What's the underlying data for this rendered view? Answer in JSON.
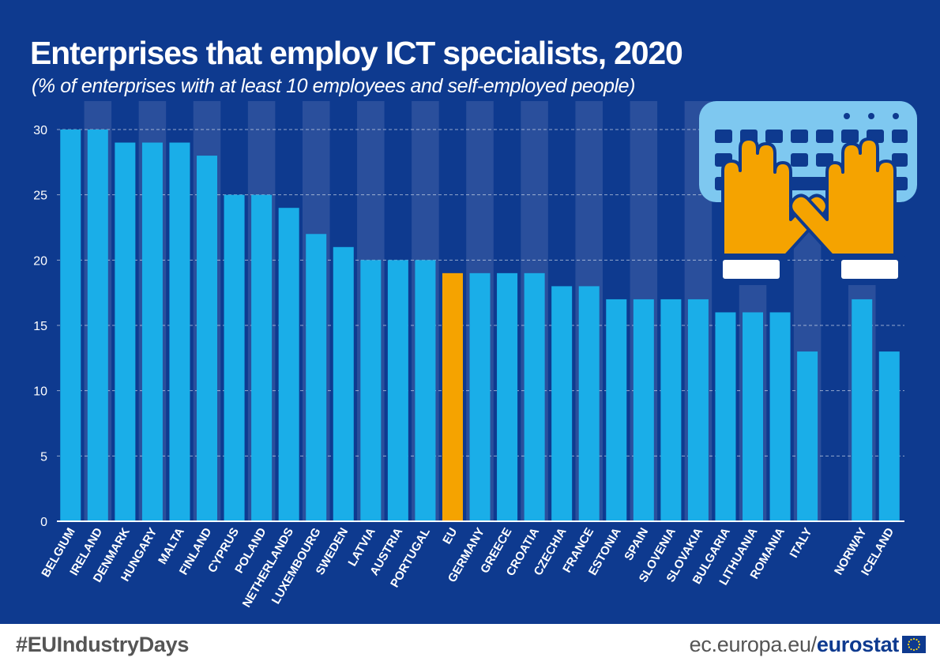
{
  "header": {
    "title": "Enterprises that employ ICT specialists, 2020",
    "subtitle": "(% of enterprises with at least 10 employees and self-employed people)"
  },
  "footer": {
    "hashtag": "#EUIndustryDays",
    "source_prefix": "ec.europa.eu/",
    "source_brand": "eurostat"
  },
  "colors": {
    "background": "#0e3a8f",
    "bar": "#1aaee8",
    "highlight": "#f5a300",
    "stripe": "#2a4f9c",
    "hands": "#f5a300",
    "keyboard": "#7ec8f0"
  },
  "icons": [
    "keyboard-hands-illustration",
    "eu-flag-icon"
  ],
  "chart_data": {
    "type": "bar",
    "title": "Enterprises that employ ICT specialists, 2020",
    "subtitle": "(% of enterprises with at least 10 employees and self-employed people)",
    "categories": [
      "BELGIUM",
      "IRELAND",
      "DENMARK",
      "HUNGARY",
      "MALTA",
      "FINLAND",
      "CYPRUS",
      "POLAND",
      "NETHERLANDS",
      "LUXEMBOURG",
      "SWEDEN",
      "LATVIA",
      "AUSTRIA",
      "PORTUGAL",
      "EU",
      "GERMANY",
      "GREECE",
      "CROATIA",
      "CZECHIA",
      "FRANCE",
      "ESTONIA",
      "SPAIN",
      "SLOVENIA",
      "SLOVAKIA",
      "BULGARIA",
      "LITHUANIA",
      "ROMANIA",
      "ITALY",
      "",
      "NORWAY",
      "ICELAND"
    ],
    "values": [
      30,
      30,
      29,
      29,
      29,
      28,
      25,
      25,
      24,
      22,
      21,
      20,
      20,
      20,
      19,
      19,
      19,
      19,
      18,
      18,
      17,
      17,
      17,
      17,
      16,
      16,
      16,
      13,
      null,
      17,
      13
    ],
    "highlight_category": "EU",
    "y_ticks": [
      "0",
      "5",
      "10",
      "15",
      "20",
      "25",
      "30"
    ],
    "ylim": [
      0,
      30
    ],
    "grid": true,
    "legend": "none"
  }
}
